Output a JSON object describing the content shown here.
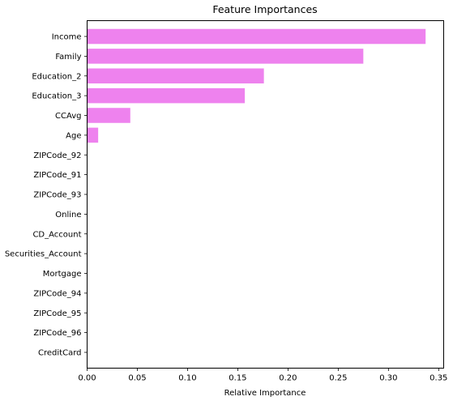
{
  "chart_data": {
    "type": "bar",
    "orientation": "horizontal",
    "title": "Feature Importances",
    "xlabel": "Relative Importance",
    "ylabel": "",
    "xlim": [
      0,
      0.355
    ],
    "xticks": [
      0,
      0.05,
      0.1,
      0.15,
      0.2,
      0.25,
      0.3,
      0.35
    ],
    "xtick_labels": [
      "0.00",
      "0.05",
      "0.10",
      "0.15",
      "0.20",
      "0.25",
      "0.30",
      "0.35"
    ],
    "grid": false,
    "bar_color": "#ee82ee",
    "categories": [
      "Income",
      "Family",
      "Education_2",
      "Education_3",
      "CCAvg",
      "Age",
      "ZIPCode_92",
      "ZIPCode_91",
      "ZIPCode_93",
      "Online",
      "CD_Account",
      "Securities_Account",
      "Mortgage",
      "ZIPCode_94",
      "ZIPCode_95",
      "ZIPCode_96",
      "CreditCard"
    ],
    "values": [
      0.337,
      0.275,
      0.176,
      0.157,
      0.043,
      0.011,
      0,
      0,
      0,
      0,
      0,
      0,
      0,
      0,
      0,
      0,
      0
    ]
  }
}
